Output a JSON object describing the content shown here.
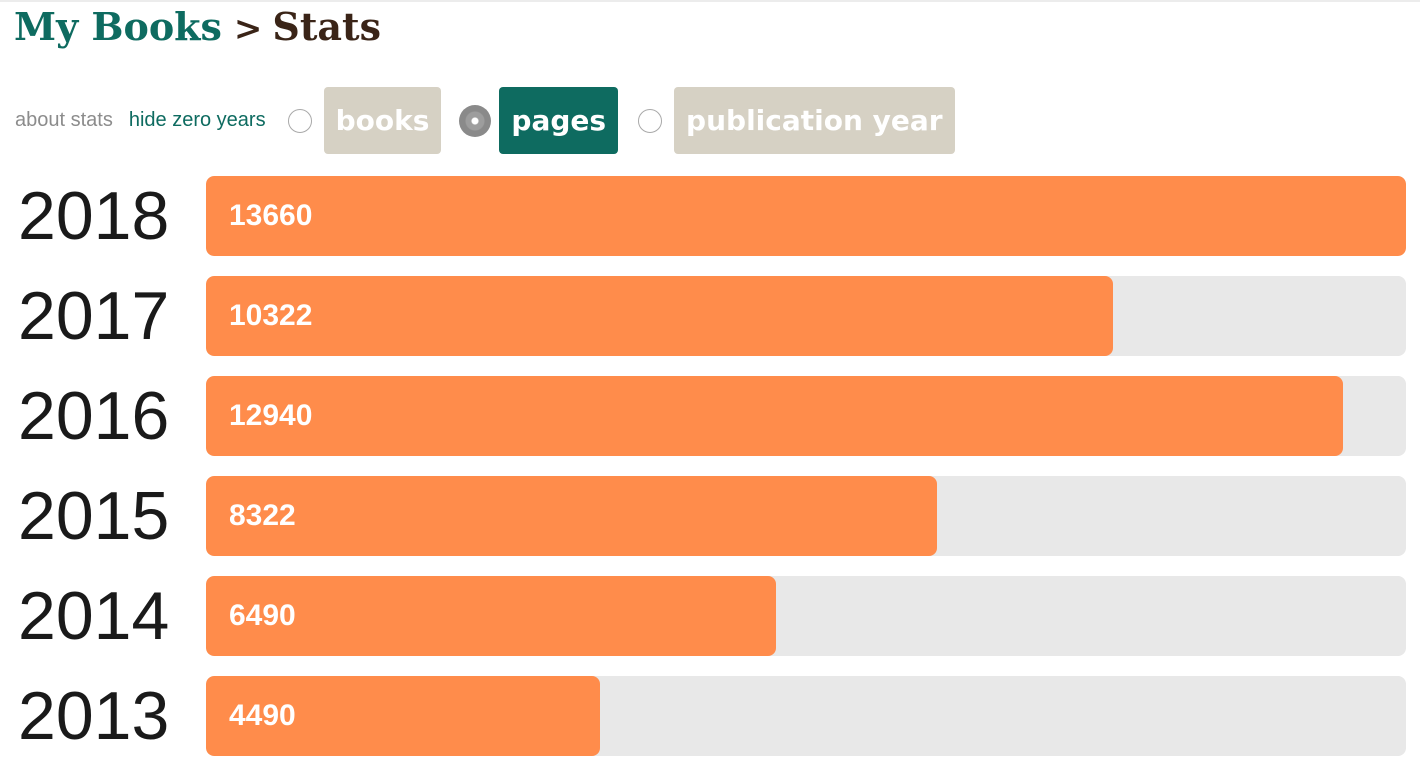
{
  "breadcrumb": {
    "parent": "My Books",
    "separator": ">",
    "current": "Stats"
  },
  "links": {
    "about": "about stats",
    "hide_zero": "hide zero years"
  },
  "metric_options": [
    {
      "label": "books",
      "selected": false
    },
    {
      "label": "pages",
      "selected": true
    },
    {
      "label": "publication year",
      "selected": false
    }
  ],
  "colors": {
    "accent": "#0e6b60",
    "bar": "#ff8c4b",
    "track": "#e8e8e8",
    "inactive_button": "#d6d1c4",
    "title_dark": "#3a2417"
  },
  "chart_data": {
    "type": "bar",
    "orientation": "horizontal",
    "categories": [
      "2018",
      "2017",
      "2016",
      "2015",
      "2014",
      "2013"
    ],
    "values": [
      13660,
      10322,
      12940,
      8322,
      6490,
      4490
    ],
    "xlim": [
      0,
      13660
    ]
  }
}
